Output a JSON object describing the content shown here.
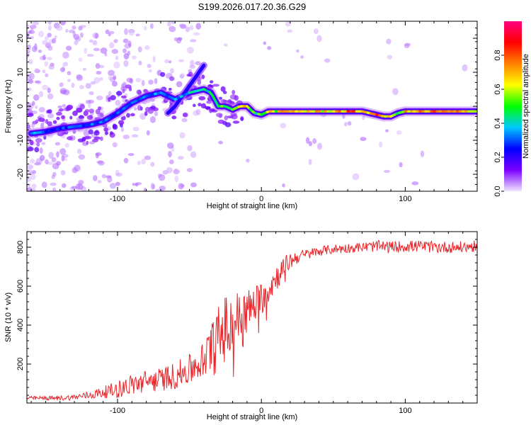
{
  "title": "S199.2026.017.20.36.G29",
  "colors": {
    "snr_line": "#e8262b",
    "axis": "#000000",
    "background": "#ffffff"
  },
  "chart_data": [
    {
      "type": "heatmap",
      "name": "spectrogram",
      "xlabel": "Height of straight line (km)",
      "ylabel": "Frequency (Hz)",
      "xlim": [
        -163,
        150
      ],
      "ylim": [
        -25,
        25
      ],
      "xticks": [
        -100,
        0,
        100
      ],
      "yticks": [
        -20,
        -10,
        0,
        10,
        20
      ],
      "colorbar": {
        "label": "Normalized spectral amplitude",
        "range": [
          0,
          1
        ],
        "ticks": [
          0.0,
          0.2,
          0.4,
          0.6,
          0.8
        ],
        "tick_labels": [
          "0.0",
          "0.2",
          "0.4",
          "0.6",
          "0.8"
        ],
        "colors": [
          "#f2e6ff",
          "#7a00ff",
          "#0000ff",
          "#00c8ff",
          "#00ff00",
          "#ffff00",
          "#ff8000",
          "#ff0000",
          "#ff0080"
        ]
      },
      "ridge": {
        "x": [
          -160,
          -150,
          -140,
          -130,
          -120,
          -110,
          -100,
          -90,
          -80,
          -70,
          -60,
          -50,
          -40,
          -35,
          -30,
          -25,
          -20,
          -15,
          -10,
          -5,
          0,
          5,
          10,
          20,
          40,
          60,
          70,
          80,
          85,
          90,
          95,
          100,
          120,
          150
        ],
        "freq": [
          -8,
          -7.5,
          -6.5,
          -6,
          -5.5,
          -4.5,
          -2,
          1,
          3,
          4,
          2,
          4,
          5,
          4,
          0,
          0,
          -1,
          0,
          0,
          -2,
          -2.5,
          -1.5,
          -1.5,
          -1.5,
          -1.5,
          -1.5,
          -1.5,
          -2.5,
          -3,
          -3,
          -2,
          -1.5,
          -1.5,
          -1.5
        ],
        "amp": [
          0.35,
          0.3,
          0.3,
          0.3,
          0.35,
          0.35,
          0.3,
          0.3,
          0.35,
          0.35,
          0.35,
          0.4,
          0.45,
          0.45,
          0.55,
          0.6,
          0.6,
          0.65,
          0.7,
          0.5,
          0.55,
          0.7,
          0.65,
          0.75,
          0.7,
          0.8,
          0.75,
          0.85,
          0.75,
          0.6,
          0.6,
          0.7,
          0.8,
          0.7
        ]
      },
      "secondary_ridge": {
        "x": [
          -65,
          -60,
          -55,
          -50,
          -45,
          -40
        ],
        "freq": [
          -2,
          0,
          3,
          6,
          9,
          12
        ],
        "amp": [
          0.3,
          0.3,
          0.3,
          0.3,
          0.3,
          0.25
        ]
      }
    },
    {
      "type": "line",
      "name": "snr",
      "xlabel": "Height of straight line (km)",
      "ylabel": "SNR (10 * v/v)",
      "xlim": [
        -163,
        150
      ],
      "ylim": [
        0,
        880
      ],
      "xticks": [
        -100,
        0,
        100
      ],
      "yticks": [
        200,
        400,
        600,
        800
      ],
      "series": [
        {
          "name": "SNR",
          "x": [
            -163,
            -150,
            -140,
            -130,
            -120,
            -110,
            -100,
            -90,
            -80,
            -70,
            -60,
            -50,
            -40,
            -35,
            -30,
            -25,
            -20,
            -15,
            -10,
            -5,
            0,
            5,
            10,
            15,
            20,
            25,
            30,
            40,
            50,
            60,
            70,
            80,
            90,
            100,
            110,
            120,
            130,
            140,
            150
          ],
          "y": [
            25,
            25,
            25,
            30,
            40,
            55,
            70,
            95,
            110,
            120,
            140,
            170,
            220,
            270,
            330,
            380,
            410,
            440,
            470,
            500,
            540,
            590,
            640,
            690,
            730,
            750,
            760,
            780,
            790,
            795,
            800,
            805,
            800,
            805,
            805,
            800,
            800,
            800,
            805
          ],
          "noise": [
            10,
            10,
            12,
            15,
            20,
            30,
            45,
            55,
            60,
            60,
            70,
            80,
            100,
            140,
            170,
            180,
            170,
            140,
            120,
            100,
            90,
            80,
            70,
            60,
            45,
            35,
            30,
            25,
            25,
            25,
            25,
            30,
            30,
            30,
            30,
            30,
            30,
            30,
            30
          ]
        }
      ]
    }
  ]
}
